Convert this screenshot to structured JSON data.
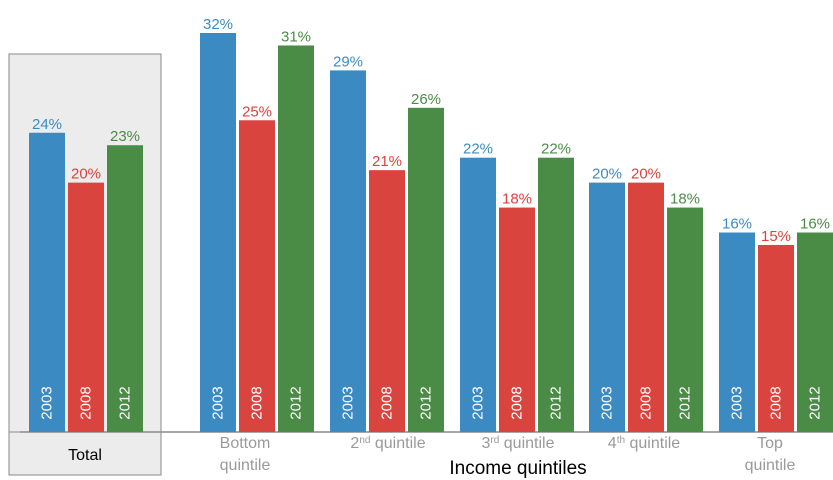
{
  "chart_data": {
    "type": "bar",
    "xlabel": "Income quintiles",
    "series_names": [
      "2003",
      "2008",
      "2012"
    ],
    "groups": [
      {
        "label": "Total",
        "values": [
          24,
          20,
          23
        ],
        "data_labels": [
          "24%",
          "20%",
          "23%"
        ]
      },
      {
        "label_parts": [
          {
            "t": "Bottom"
          },
          {
            "t": "quintile",
            "newline": true
          }
        ],
        "values": [
          32,
          25,
          31
        ],
        "data_labels": [
          "32%",
          "25%",
          "31%"
        ]
      },
      {
        "label_parts": [
          {
            "t": "2"
          },
          {
            "t": "nd",
            "sup": true
          },
          {
            "t": " quintile"
          }
        ],
        "values": [
          29,
          21,
          26
        ],
        "data_labels": [
          "29%",
          "21%",
          "26%"
        ]
      },
      {
        "label_parts": [
          {
            "t": "3"
          },
          {
            "t": "rd",
            "sup": true
          },
          {
            "t": " quintile"
          }
        ],
        "values": [
          22,
          18,
          22
        ],
        "data_labels": [
          "22%",
          "18%",
          "22%"
        ]
      },
      {
        "label_parts": [
          {
            "t": "4"
          },
          {
            "t": "th",
            "sup": true
          },
          {
            "t": " quintile"
          }
        ],
        "values": [
          20,
          20,
          18
        ],
        "data_labels": [
          "20%",
          "20%",
          "18%"
        ]
      },
      {
        "label_parts": [
          {
            "t": "Top"
          },
          {
            "t": "quintile",
            "newline": true
          }
        ],
        "values": [
          16,
          15,
          16
        ],
        "data_labels": [
          "16%",
          "15%",
          "16%"
        ]
      }
    ],
    "ylim": [
      0,
      32
    ],
    "grid": false,
    "legend": "none (year printed inside each bar)"
  },
  "colors": {
    "2003": "#3b8bc2",
    "2008": "#d9443f",
    "2012": "#4a8c45",
    "label_2003": "#3b8bc2",
    "label_2008": "#d9443f",
    "label_2012": "#4a8c45",
    "group_label": "#9a9a9a",
    "axis_title": "#000000",
    "total_box_fill": "#ececec",
    "total_box_stroke": "#8a8a8a",
    "baseline": "#8a8a8a"
  }
}
